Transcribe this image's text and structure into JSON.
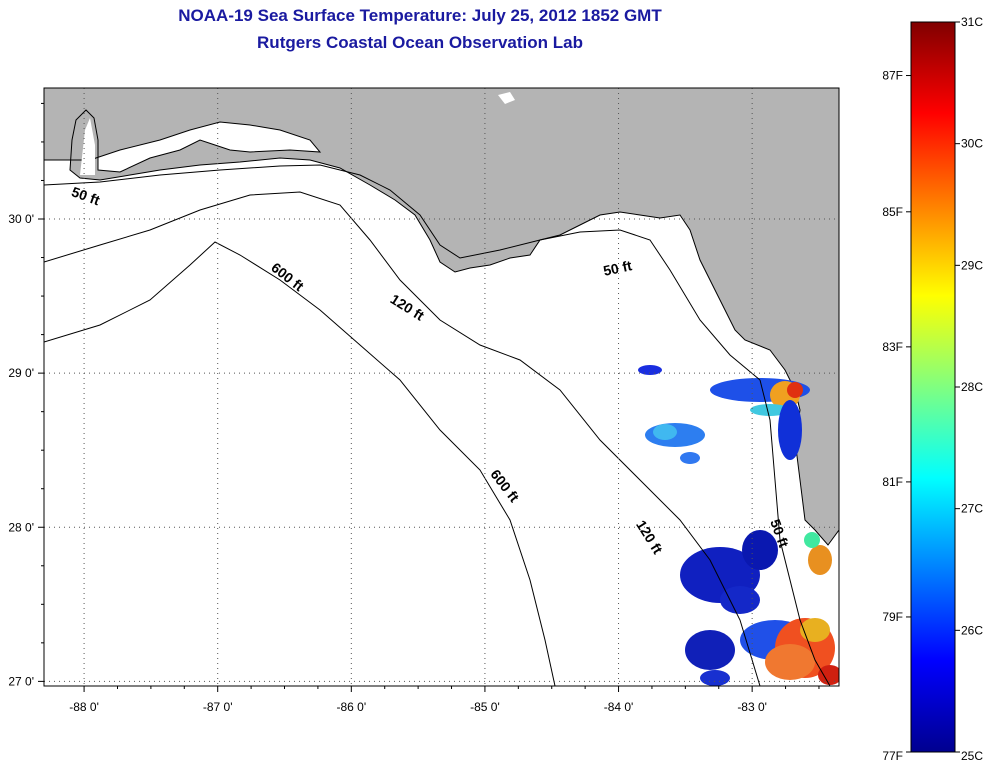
{
  "title": {
    "line1": "NOAA-19 Sea Surface Temperature:  July 25, 2012 1852 GMT",
    "line2": "Rutgers Coastal Ocean Observation Lab"
  },
  "map": {
    "lon_range": [
      -88.3,
      -82.35
    ],
    "lat_range": [
      26.97,
      30.85
    ],
    "x_ticks": [
      {
        "lon": -88,
        "label": "-88 0'"
      },
      {
        "lon": -87,
        "label": "-87 0'"
      },
      {
        "lon": -86,
        "label": "-86 0'"
      },
      {
        "lon": -85,
        "label": "-85 0'"
      },
      {
        "lon": -84,
        "label": "-84 0'"
      },
      {
        "lon": -83,
        "label": "-83 0'"
      }
    ],
    "y_ticks": [
      {
        "lat": 30,
        "label": "30 0'"
      },
      {
        "lat": 29,
        "label": "29 0'"
      },
      {
        "lat": 28,
        "label": "28 0'"
      },
      {
        "lat": 27,
        "label": "27 0'"
      }
    ],
    "gridlines": true,
    "land_color": "#b4b4b4",
    "ocean_color": "#ffffff",
    "contour_labels": [
      {
        "text": "50 ft",
        "lon": -88.0,
        "lat": 30.12,
        "angle": 20
      },
      {
        "text": "600 ft",
        "lon": -86.5,
        "lat": 29.6,
        "angle": 38
      },
      {
        "text": "120 ft",
        "lon": -85.6,
        "lat": 29.4,
        "angle": 32
      },
      {
        "text": "50 ft",
        "lon": -84.0,
        "lat": 29.65,
        "angle": -12
      },
      {
        "text": "600 ft",
        "lon": -84.88,
        "lat": 28.25,
        "angle": 52
      },
      {
        "text": "120 ft",
        "lon": -83.8,
        "lat": 27.92,
        "angle": 58
      },
      {
        "text": "50 ft",
        "lon": -82.83,
        "lat": 27.95,
        "angle": 70
      }
    ]
  },
  "colorbar": {
    "min_c": 25,
    "max_c": 31,
    "celsius_labels": [
      "31C",
      "30C",
      "29C",
      "28C",
      "27C",
      "26C",
      "25C"
    ],
    "fahrenheit_labels": [
      {
        "label": "87F",
        "value_c": 30.56
      },
      {
        "label": "85F",
        "value_c": 29.44
      },
      {
        "label": "83F",
        "value_c": 28.33
      },
      {
        "label": "81F",
        "value_c": 27.22
      },
      {
        "label": "79F",
        "value_c": 26.11
      },
      {
        "label": "77F",
        "value_c": 25.0
      }
    ]
  }
}
